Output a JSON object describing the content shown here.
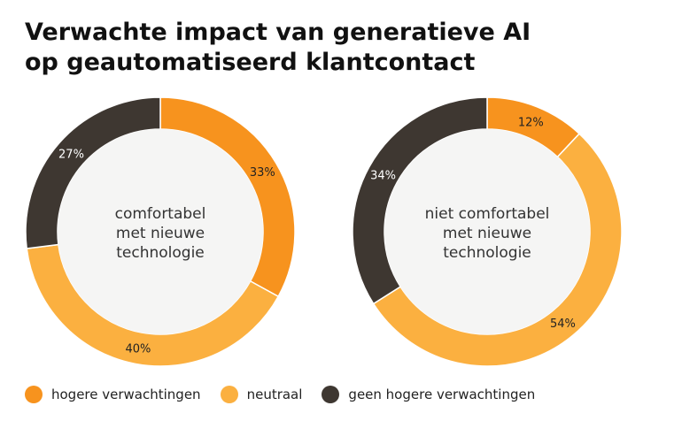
{
  "title": {
    "line1": "Verwachte impact van generatieve AI",
    "line2": "op geautomatiseerd klantcontact"
  },
  "colors": {
    "hogere": "#F7931E",
    "neutraal": "#FBB040",
    "geen": "#3E3731",
    "center": "#F5F5F4",
    "separator": "#ffffff"
  },
  "legend": [
    {
      "label": "hogere verwachtingen",
      "color": "#F7931E"
    },
    {
      "label": "neutraal",
      "color": "#FBB040"
    },
    {
      "label": "geen hogere verwachtingen",
      "color": "#3E3731"
    }
  ],
  "chart_data": [
    {
      "type": "pie",
      "center_label": [
        "comfortabel",
        "met nieuwe",
        "technologie"
      ],
      "categories": [
        "hogere verwachtingen",
        "neutraal",
        "geen hogere verwachtingen"
      ],
      "values": [
        33,
        40,
        27
      ],
      "labels": [
        "33%",
        "40%",
        "27%"
      ]
    },
    {
      "type": "pie",
      "center_label": [
        "niet comfortabel",
        "met nieuwe",
        "technologie"
      ],
      "categories": [
        "hogere verwachtingen",
        "neutraal",
        "geen hogere verwachtingen"
      ],
      "values": [
        12,
        54,
        34
      ],
      "labels": [
        "12%",
        "54%",
        "34%"
      ]
    }
  ]
}
